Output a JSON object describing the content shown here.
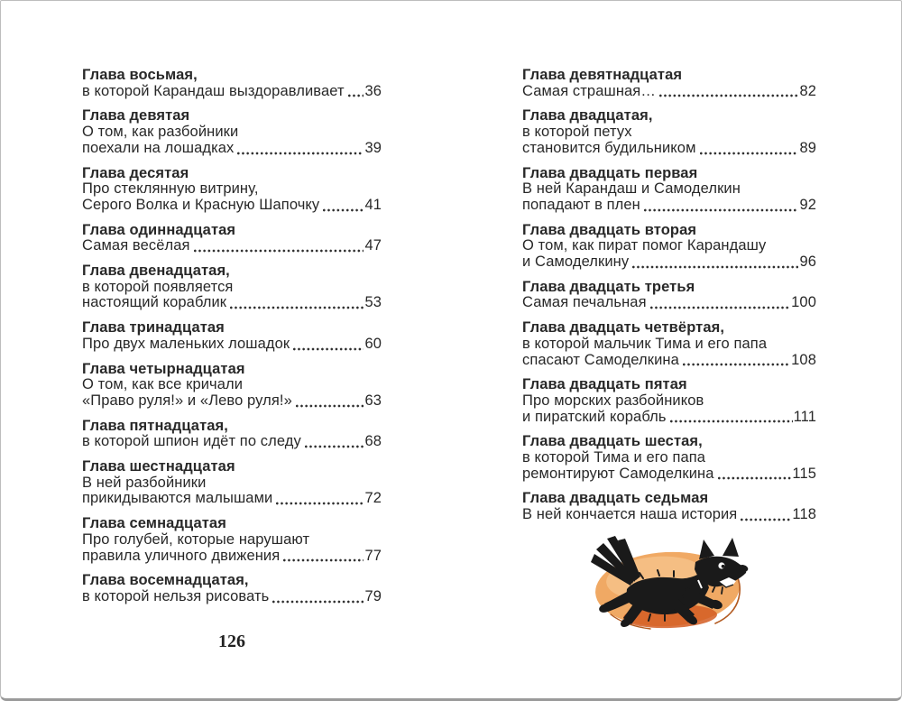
{
  "page": {
    "kind": "book-table-of-contents-spread",
    "language": "ru"
  },
  "left_column": {
    "footer_page_number": "126",
    "entries": [
      {
        "title": "Глава восьмая,",
        "body": [
          "в которой Карандаш выздоравливает"
        ],
        "page": "36"
      },
      {
        "title": "Глава девятая",
        "body": [
          "О том, как разбойники",
          "поехали на лошадках"
        ],
        "page": "39"
      },
      {
        "title": "Глава десятая",
        "body": [
          "Про стеклянную витрину,",
          "Серого Волка и Красную Шапочку"
        ],
        "page": "41"
      },
      {
        "title": "Глава одиннадцатая",
        "body": [
          "Самая весёлая"
        ],
        "page": "47"
      },
      {
        "title": "Глава двенадцатая,",
        "body": [
          "в которой появляется",
          "настоящий кораблик"
        ],
        "page": "53"
      },
      {
        "title": "Глава тринадцатая",
        "body": [
          "Про двух маленьких лошадок"
        ],
        "page": "60"
      },
      {
        "title": "Глава четырнадцатая",
        "body": [
          "О том, как все кричали",
          "«Право руля!» и «Лево руля!»"
        ],
        "page": "63"
      },
      {
        "title": "Глава пятнадцатая,",
        "body": [
          "в которой шпион идёт по следу"
        ],
        "page": "68"
      },
      {
        "title": "Глава шестнадцатая",
        "body": [
          "В ней разбойники",
          "прикидываются малышами"
        ],
        "page": "72"
      },
      {
        "title": "Глава семнадцатая",
        "body": [
          "Про голубей, которые нарушают",
          "правила уличного движения"
        ],
        "page": "77"
      },
      {
        "title": "Глава восемнадцатая,",
        "body": [
          "в которой нельзя рисовать"
        ],
        "page": "79"
      }
    ]
  },
  "right_column": {
    "illustration": "running-black-dog-on-orange-blob",
    "entries": [
      {
        "title": "Глава девятнадцатая",
        "body": [
          "Самая страшная…"
        ],
        "page": "82"
      },
      {
        "title": "Глава двадцатая,",
        "body": [
          "в которой петух",
          "становится будильником"
        ],
        "page": "89"
      },
      {
        "title": "Глава двадцать первая",
        "body": [
          "В ней Карандаш и Самоделкин",
          "попадают в плен"
        ],
        "page": "92"
      },
      {
        "title": "Глава двадцать вторая",
        "body": [
          "О том, как пират помог Карандашу",
          "и Самоделкину"
        ],
        "page": "96"
      },
      {
        "title": "Глава двадцать третья",
        "body": [
          "Самая печальная"
        ],
        "page": "100"
      },
      {
        "title": "Глава двадцать четвёртая,",
        "body": [
          "в которой мальчик Тима и его папа",
          "спасают Самоделкина"
        ],
        "page": "108"
      },
      {
        "title": "Глава двадцать пятая",
        "body": [
          "Про морских разбойников",
          "и пиратский корабль"
        ],
        "page": "111"
      },
      {
        "title": "Глава двадцать шестая,",
        "body": [
          "в которой Тима и его папа",
          "ремонтируют Самоделкина"
        ],
        "page": "115"
      },
      {
        "title": "Глава двадцать седьмая",
        "body": [
          "В ней кончается наша история"
        ],
        "page": "118"
      }
    ]
  },
  "colors": {
    "text": "#282828",
    "page_background": "#ffffff",
    "border": "#bdbdbd",
    "border_bottom": "#9a9a9a",
    "blob_orange": "#efa257",
    "blob_light": "#f7c68e",
    "blob_dark": "#d45d22",
    "blob_outline": "#b25a20",
    "dog_black": "#1a1a1a",
    "dog_eye_white": "#ffffff"
  }
}
